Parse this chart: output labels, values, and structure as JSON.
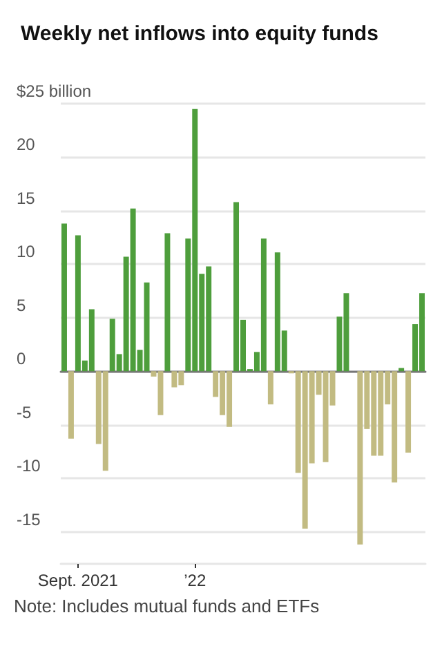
{
  "chart_data": {
    "type": "bar",
    "title": "Weekly net inflows into equity funds",
    "categories": [
      null,
      null,
      "Sept. 2021",
      null,
      null,
      null,
      null,
      null,
      null,
      null,
      null,
      null,
      null,
      null,
      null,
      null,
      null,
      null,
      null,
      "’22",
      null,
      null,
      null,
      null,
      null,
      null,
      null,
      null,
      null,
      null,
      null,
      null,
      null,
      null,
      null,
      null,
      null,
      null,
      null,
      null,
      null,
      null,
      null,
      null,
      null,
      null,
      null,
      null,
      null,
      null,
      null,
      null,
      null
    ],
    "values": [
      13.8,
      -6.3,
      12.7,
      1.0,
      5.8,
      -6.8,
      -9.3,
      4.9,
      1.6,
      10.7,
      15.2,
      2.0,
      8.3,
      -0.5,
      -4.1,
      12.9,
      -1.5,
      -1.3,
      12.4,
      24.5,
      9.1,
      9.8,
      -2.4,
      -4.1,
      -5.2,
      15.8,
      4.8,
      0.2,
      1.8,
      12.4,
      -3.1,
      11.1,
      3.8,
      -0.2,
      -9.5,
      -14.7,
      -8.6,
      -2.2,
      -8.5,
      -3.2,
      5.1,
      7.3,
      null,
      -16.2,
      -5.4,
      -7.9,
      -7.9,
      -3.1,
      -10.4,
      0.3,
      -7.6,
      4.4,
      7.3
    ],
    "colors": [
      "#4e9e3c",
      "#c2bb82",
      "#4e9e3c",
      "#4e9e3c",
      "#4e9e3c",
      "#c2bb82",
      "#c2bb82",
      "#4e9e3c",
      "#4e9e3c",
      "#4e9e3c",
      "#4e9e3c",
      "#4e9e3c",
      "#4e9e3c",
      "#c2bb82",
      "#c2bb82",
      "#4e9e3c",
      "#c2bb82",
      "#c2bb82",
      "#4e9e3c",
      "#4e9e3c",
      "#4e9e3c",
      "#4e9e3c",
      "#c2bb82",
      "#c2bb82",
      "#c2bb82",
      "#4e9e3c",
      "#4e9e3c",
      "#4e9e3c",
      "#4e9e3c",
      "#4e9e3c",
      "#c2bb82",
      "#4e9e3c",
      "#4e9e3c",
      "#c2bb82",
      "#c2bb82",
      "#c2bb82",
      "#c2bb82",
      "#c2bb82",
      "#c2bb82",
      "#c2bb82",
      "#4e9e3c",
      "#4e9e3c",
      "#4e9e3c",
      "#c2bb82",
      "#c2bb82",
      "#c2bb82",
      "#c2bb82",
      "#c2bb82",
      "#c2bb82",
      "#4e9e3c",
      "#c2bb82",
      "#4e9e3c",
      "#4e9e3c"
    ],
    "ylim": [
      -18,
      25
    ],
    "yticks": [
      {
        "value": 25,
        "label": "$25 billion"
      },
      20,
      15,
      10,
      5,
      0,
      -5,
      -10,
      -15
    ],
    "grid": "y",
    "annotations": [
      "Note: Includes mutual funds and ETFs"
    ]
  }
}
